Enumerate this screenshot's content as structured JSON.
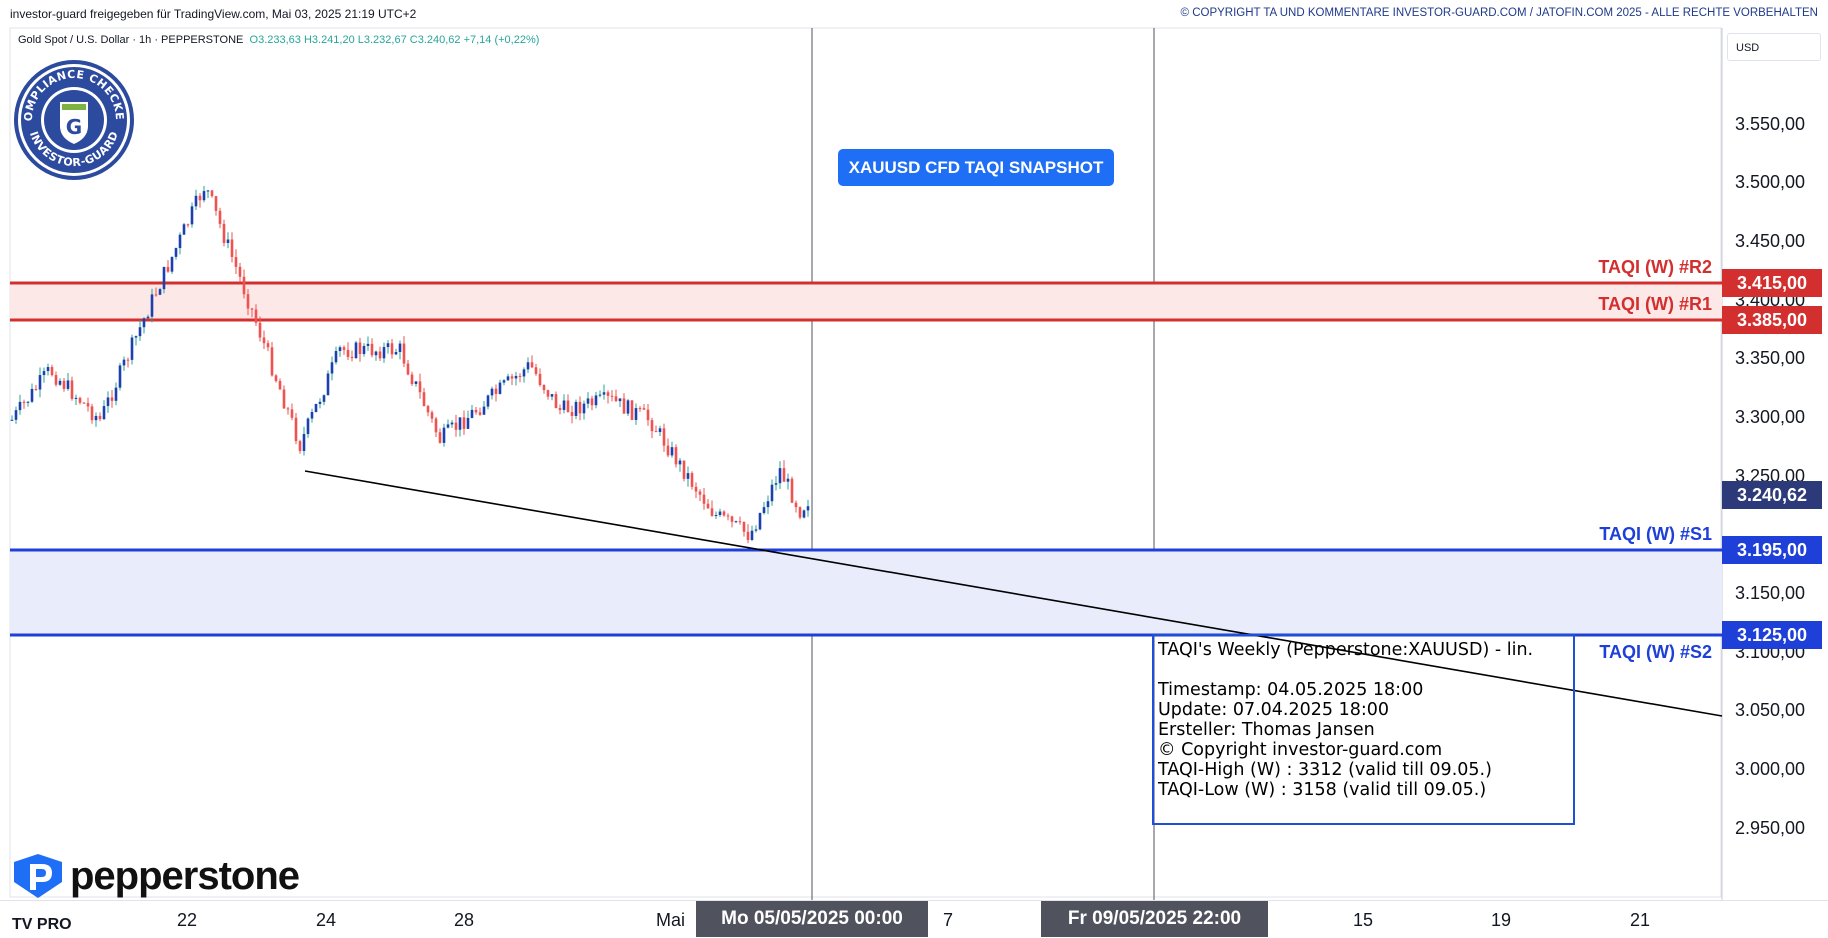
{
  "header": {
    "left_text": "investor-guard freigegeben für TradingView.com, Mai 03, 2025 21:19 UTC+2",
    "right_text": "© COPYRIGHT TA UND KOMMENTARE INVESTOR-GUARD.COM / JATOFIN.COM 2025 - ALLE RECHTE VORBEHALTEN"
  },
  "symbol": {
    "name": "Gold Spot / U.S. Dollar · 1h · PEPPERSTONE",
    "ohlc": "O3.233,63  H3.241,20  L3.232,67  C3.240,62  +7,14 (+0,22%)"
  },
  "badge": {
    "top_text": "COMPLIANCE CHECKED",
    "bottom_text": "INVESTOR-GUARD",
    "letter": "G"
  },
  "snapshot_button": "XAUUSD CFD TAQI SNAPSHOT",
  "currency": "USD",
  "price_axis": [
    "3.550,00",
    "3.500,00",
    "3.450,00",
    "3.400,00",
    "3.350,00",
    "3.300,00",
    "3.250,00",
    "3.150,00",
    "3.100,00",
    "3.050,00",
    "3.000,00",
    "2.950,00"
  ],
  "levels": {
    "r2": {
      "label": "TAQI (W) #R2",
      "price": "3.415,00",
      "value": 3415,
      "color": "#d32f2f"
    },
    "r1": {
      "label": "TAQI (W) #R1",
      "price": "3.385,00",
      "value": 3385,
      "color": "#d32f2f"
    },
    "s1": {
      "label": "TAQI (W) #S1",
      "price": "3.195,00",
      "value": 3195,
      "color": "#1e3fd8"
    },
    "s2": {
      "label": "TAQI (W) #S2",
      "price": "3.125,00",
      "value": 3125,
      "color": "#1e3fd8"
    },
    "current": {
      "price": "3.240,62",
      "value": 3240.62,
      "color": "#2d3a7a"
    }
  },
  "info_box": {
    "lines": [
      "TAQI's Weekly (Pepperstone:XAUUSD) - lin.",
      "",
      "Timestamp: 04.05.2025 18:00",
      "Update: 07.04.2025 18:00",
      "Ersteller: Thomas Jansen",
      "© Copyright investor-guard.com",
      "TAQI-High (W) : 3312 (valid till 09.05.)",
      "TAQI-Low (W) : 3158 (valid till 09.05.)"
    ]
  },
  "broker_logo": "pepperstone",
  "time_axis": {
    "ticks": [
      "22",
      "24",
      "28",
      "Mai",
      "7",
      "15",
      "19",
      "21"
    ],
    "crosshair_1": "Mo 05/05/2025   00:00",
    "crosshair_2": "Fr 09/05/2025   22:00"
  },
  "tv_logo": "TV PRO"
}
